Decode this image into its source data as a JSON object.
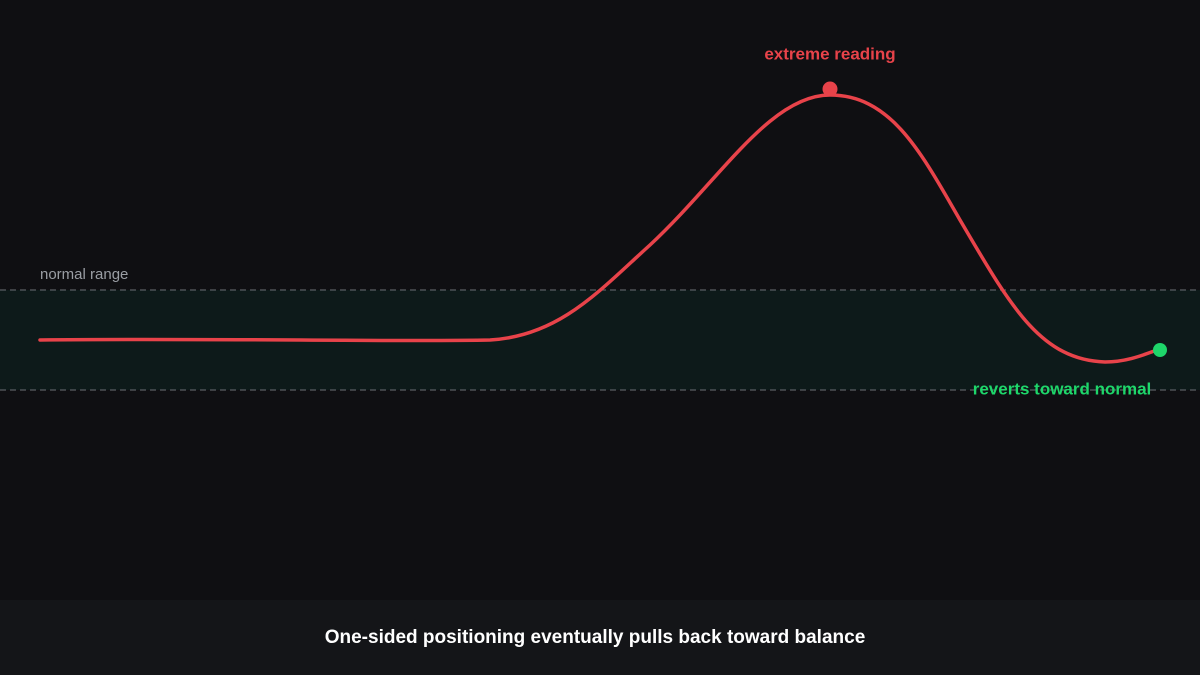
{
  "annotations": {
    "normal_range": "normal range",
    "extreme": "extreme reading",
    "reverts": "reverts toward normal"
  },
  "caption": "One-sided positioning eventually pulls back toward balance"
}
